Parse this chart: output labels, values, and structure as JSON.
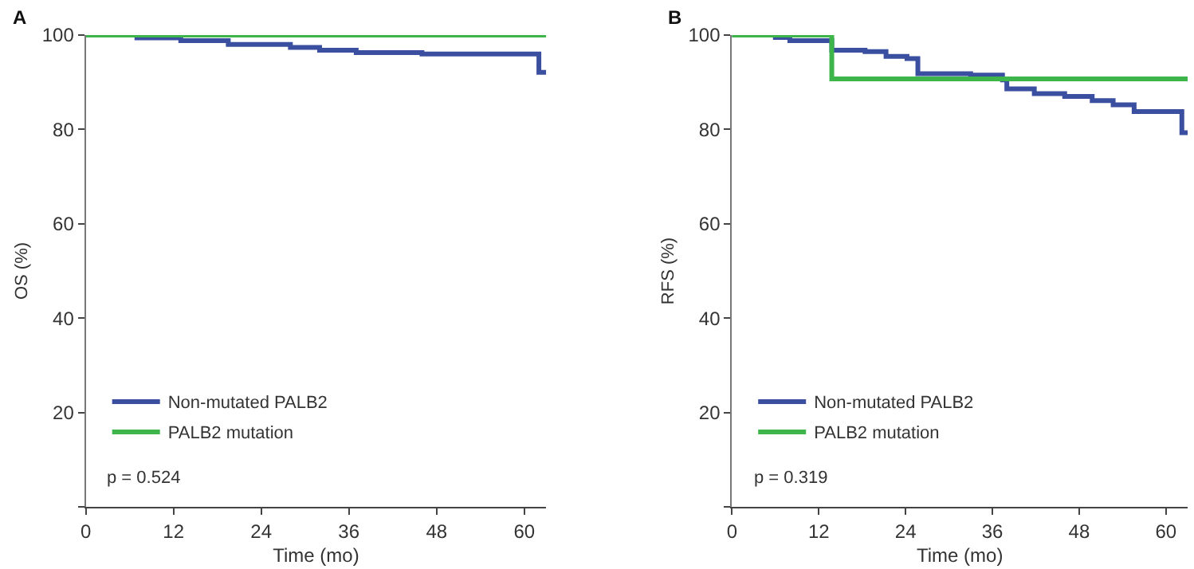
{
  "chart_data": [
    {
      "type": "step",
      "title": "A",
      "xlabel": "Time (mo)",
      "ylabel": "OS (%)",
      "xlim": [
        0,
        63
      ],
      "xticks": [
        0,
        12,
        24,
        36,
        48,
        60
      ],
      "ylim": [
        0,
        100
      ],
      "yticks": [
        {
          "value": 0,
          "label": null
        },
        20,
        40,
        60,
        80,
        100
      ],
      "legend": "bottom left",
      "annotations": [
        "p = 0.524"
      ],
      "series": [
        {
          "name": "Non-mutated PALB2",
          "color": "#3a4fa0",
          "x": [
            0,
            7,
            13,
            19.5,
            28,
            32,
            37,
            46,
            62,
            63
          ],
          "values": [
            100,
            99.4,
            98.8,
            98.0,
            97.4,
            96.8,
            96.3,
            96.0,
            92.1,
            92.1
          ]
        },
        {
          "name": "PALB2 mutation",
          "color": "#3db54a",
          "x": [
            0,
            63
          ],
          "values": [
            100,
            100
          ]
        }
      ]
    },
    {
      "type": "step",
      "title": "B",
      "xlabel": "Time (mo)",
      "ylabel": "RFS (%)",
      "xlim": [
        0,
        63
      ],
      "xticks": [
        0,
        12,
        24,
        36,
        48,
        60
      ],
      "ylim": [
        0,
        100
      ],
      "yticks": [
        {
          "value": 0,
          "label": null
        },
        20,
        40,
        60,
        80,
        100
      ],
      "legend": "bottom left",
      "annotations": [
        "p = 0.319"
      ],
      "series": [
        {
          "name": "Non-mutated PALB2",
          "color": "#3a4fa0",
          "x": [
            0,
            6,
            8,
            13.8,
            18.4,
            21.3,
            24.2,
            25.7,
            33,
            37.4,
            38,
            41.8,
            46,
            49.8,
            52.7,
            55.6,
            62.2,
            63
          ],
          "values": [
            100,
            99.5,
            98.8,
            96.8,
            96.5,
            95.5,
            95.0,
            91.8,
            91.5,
            90.5,
            88.6,
            87.6,
            87.0,
            86.1,
            85.2,
            83.8,
            79.3,
            79.3
          ]
        },
        {
          "name": "PALB2 mutation",
          "color": "#3db54a",
          "x": [
            0,
            13.8,
            63
          ],
          "values": [
            100,
            90.7,
            90.7
          ]
        }
      ]
    }
  ]
}
